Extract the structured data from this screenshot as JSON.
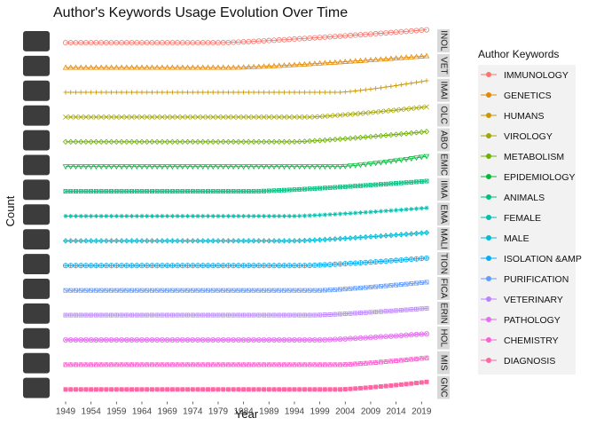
{
  "chart_data": {
    "type": "line",
    "title": "Author's Keywords Usage Evolution Over Time",
    "xlabel": "Year",
    "ylabel": "Count",
    "xlim": [
      1949,
      2020
    ],
    "x_ticks": [
      "1949",
      "1954",
      "1959",
      "1964",
      "1969",
      "1974",
      "1979",
      "1984",
      "1989",
      "1994",
      "1999",
      "2004",
      "2009",
      "2014",
      "2019"
    ],
    "legend_title": "Author Keywords",
    "legend_position": "right",
    "facet_layout": "one row panel per keyword",
    "strip_labels": [
      "INOL",
      "VET",
      "IMAI",
      "OLC",
      "ABO",
      "EMIC",
      "IIMA",
      "EMA",
      "MALI",
      "TION",
      "FICA",
      "ERIN",
      "HOL",
      "MIS",
      "GNC"
    ],
    "axis_tick_labels_legible": false,
    "grid": false,
    "y_scale": "free per panel, values unreadable",
    "series": [
      {
        "name": "IMMUNOLOGY",
        "color": "#F8766D",
        "shape": "circle",
        "growth_start": 1979,
        "rise": 0.95
      },
      {
        "name": "GENETICS",
        "color": "#E58700",
        "shape": "triangle",
        "growth_start": 1982,
        "rise": 0.85
      },
      {
        "name": "HUMANS",
        "color": "#C99800",
        "shape": "plus",
        "growth_start": 2003,
        "rise": 0.85
      },
      {
        "name": "VIROLOGY",
        "color": "#A3A500",
        "shape": "cross",
        "growth_start": 1997,
        "rise": 0.75
      },
      {
        "name": "METABOLISM",
        "color": "#6BB100",
        "shape": "diamond",
        "growth_start": 1994,
        "rise": 0.75
      },
      {
        "name": "EPIDEMIOLOGY",
        "color": "#00BA38",
        "shape": "triangle-down",
        "growth_start": 2003,
        "rise": 0.75
      },
      {
        "name": "ANIMALS",
        "color": "#00BF7D",
        "shape": "square-cross",
        "growth_start": 1986,
        "rise": 0.75
      },
      {
        "name": "FEMALE",
        "color": "#00C0AF",
        "shape": "asterisk",
        "growth_start": 1994,
        "rise": 0.6
      },
      {
        "name": "MALE",
        "color": "#00BCD8",
        "shape": "diamond-plus",
        "growth_start": 1994,
        "rise": 0.6
      },
      {
        "name": "ISOLATION &AMP",
        "color": "#00B0F6",
        "shape": "circle-plus",
        "growth_start": 1996,
        "rise": 0.55
      },
      {
        "name": "PURIFICATION",
        "color": "#619CFF",
        "shape": "square-x",
        "growth_start": 1999,
        "rise": 0.6
      },
      {
        "name": "VETERINARY",
        "color": "#B983FF",
        "shape": "square-plus",
        "growth_start": 1998,
        "rise": 0.5
      },
      {
        "name": "PATHOLOGY",
        "color": "#E76BF3",
        "shape": "circle-x",
        "growth_start": 1999,
        "rise": 0.45
      },
      {
        "name": "CHEMISTRY",
        "color": "#FD61D1",
        "shape": "square-tri",
        "growth_start": 2003,
        "rise": 0.5
      },
      {
        "name": "DIAGNOSIS",
        "color": "#FF67A4",
        "shape": "square",
        "growth_start": 2003,
        "rise": 0.55
      }
    ]
  }
}
